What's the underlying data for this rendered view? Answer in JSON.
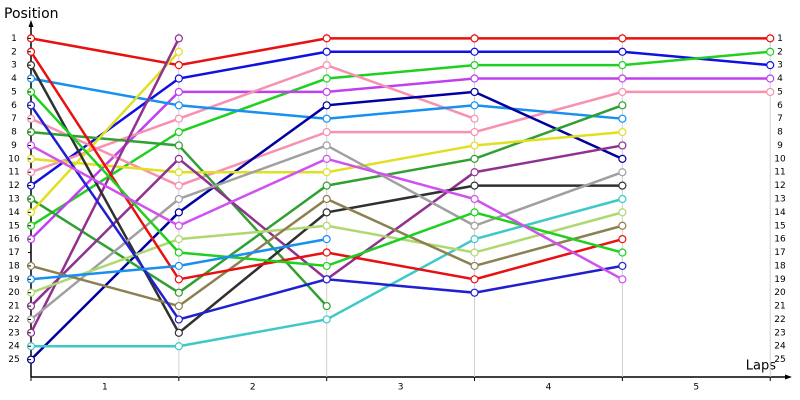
{
  "chart_data": {
    "type": "line",
    "title": "Position",
    "x_label": "Laps",
    "x": [
      0,
      1,
      2,
      3,
      4,
      5
    ],
    "xlim": [
      0,
      5.1
    ],
    "xticks": [
      {
        "value": 0.5,
        "label": "1"
      },
      {
        "value": 1.5,
        "label": "2"
      },
      {
        "value": 2.5,
        "label": "3"
      },
      {
        "value": 3.5,
        "label": "4"
      },
      {
        "value": 4.5,
        "label": "5"
      }
    ],
    "ylim": [
      26.3,
      0
    ],
    "yticks": [
      1,
      2,
      3,
      4,
      5,
      6,
      7,
      8,
      9,
      10,
      11,
      12,
      13,
      14,
      15,
      16,
      17,
      18,
      19,
      20,
      21,
      22,
      23,
      24,
      25
    ],
    "grid": true,
    "series": [
      {
        "color": "#e81010",
        "values": [
          1,
          3,
          1,
          1,
          1,
          1
        ]
      },
      {
        "color": "#1010e0",
        "values": [
          12,
          4,
          2,
          2,
          2,
          3
        ]
      },
      {
        "color": "#20d020",
        "values": [
          15,
          8,
          4,
          3,
          3,
          2
        ]
      },
      {
        "color": "#c040f0",
        "values": [
          16,
          5,
          5,
          4,
          4,
          4
        ]
      },
      {
        "color": "#f890b0",
        "values": [
          7,
          12,
          8,
          8,
          5,
          5
        ]
      },
      {
        "color": "#f890b0",
        "values": [
          11,
          7,
          3,
          7,
          null,
          null
        ]
      },
      {
        "color": "#1890f0",
        "values": [
          4,
          6,
          7,
          6,
          7,
          null
        ]
      },
      {
        "color": "#0000a0",
        "values": [
          25,
          14,
          6,
          5,
          10,
          null
        ]
      },
      {
        "color": "#30a030",
        "values": [
          13,
          20,
          12,
          10,
          6,
          null
        ]
      },
      {
        "color": "#30a030",
        "values": [
          8,
          9,
          21,
          null,
          null,
          null
        ]
      },
      {
        "color": "#e0e020",
        "values": [
          10,
          11,
          11,
          9,
          8,
          null
        ]
      },
      {
        "color": "#e0e020",
        "values": [
          14,
          2,
          null,
          null,
          null,
          null
        ]
      },
      {
        "color": "#903090",
        "values": [
          21,
          10,
          19,
          11,
          9,
          null
        ]
      },
      {
        "color": "#903090",
        "values": [
          23,
          1,
          null,
          null,
          null,
          null
        ]
      },
      {
        "color": "#303030",
        "values": [
          3,
          23,
          14,
          12,
          12,
          null
        ]
      },
      {
        "color": "#a0a0a0",
        "values": [
          22,
          13,
          9,
          15,
          11,
          null
        ]
      },
      {
        "color": "#40c8c8",
        "values": [
          24,
          24,
          22,
          16,
          13,
          null
        ]
      },
      {
        "color": "#b0d870",
        "values": [
          20,
          16,
          15,
          17,
          14,
          null
        ]
      },
      {
        "color": "#8c8050",
        "values": [
          18,
          21,
          13,
          18,
          15,
          null
        ]
      },
      {
        "color": "#e81010",
        "values": [
          2,
          19,
          17,
          19,
          16,
          null
        ]
      },
      {
        "color": "#20d020",
        "values": [
          5,
          17,
          18,
          14,
          17,
          null
        ]
      },
      {
        "color": "#2020d0",
        "values": [
          6,
          22,
          19,
          20,
          18,
          null
        ]
      },
      {
        "color": "#d050f0",
        "values": [
          9,
          15,
          10,
          13,
          19,
          null
        ]
      },
      {
        "color": "#1890f0",
        "values": [
          19,
          18,
          16,
          null,
          null,
          null
        ]
      }
    ]
  }
}
